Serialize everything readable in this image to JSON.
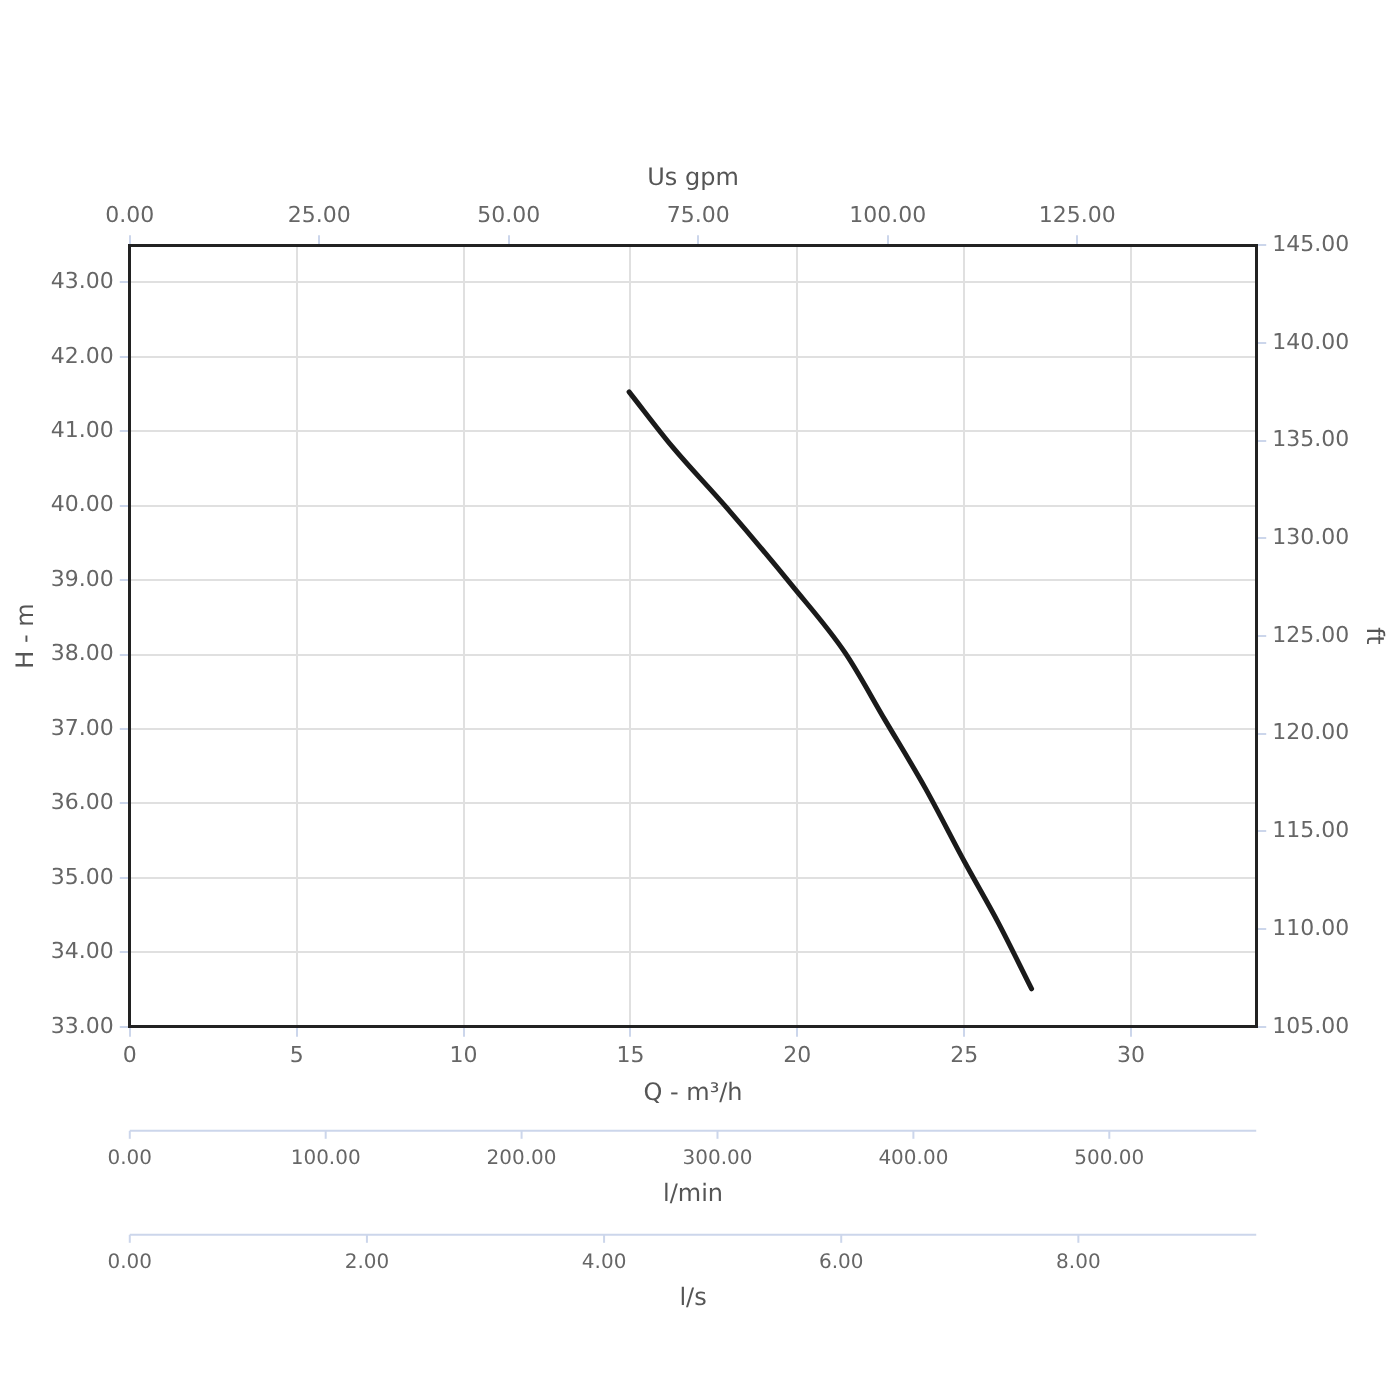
{
  "chart_data": {
    "type": "line",
    "xlabel": "Q - m³/h",
    "ylabel": "H - m",
    "x2label": "Us gpm",
    "y2label": "ft",
    "xlim": [
      0,
      33.75
    ],
    "xticks": [
      0,
      5,
      10,
      15,
      20,
      25,
      30
    ],
    "x2lim": [
      0,
      148.6
    ],
    "x2ticks": [
      {
        "value": 0,
        "label": "0.00"
      },
      {
        "value": 25,
        "label": "25.00"
      },
      {
        "value": 50,
        "label": "50.00"
      },
      {
        "value": 75,
        "label": "75.00"
      },
      {
        "value": 100,
        "label": "100.00"
      },
      {
        "value": 125,
        "label": "125.00"
      }
    ],
    "ylim": [
      33,
      43.5
    ],
    "yticks": [
      {
        "value": 33,
        "label": "33.00"
      },
      {
        "value": 34,
        "label": "34.00"
      },
      {
        "value": 35,
        "label": "35.00"
      },
      {
        "value": 36,
        "label": "36.00"
      },
      {
        "value": 37,
        "label": "37.00"
      },
      {
        "value": 38,
        "label": "38.00"
      },
      {
        "value": 39,
        "label": "39.00"
      },
      {
        "value": 40,
        "label": "40.00"
      },
      {
        "value": 41,
        "label": "41.00"
      },
      {
        "value": 42,
        "label": "42.00"
      },
      {
        "value": 43,
        "label": "43.00"
      }
    ],
    "y2lim": [
      105,
      145
    ],
    "y2ticks": [
      {
        "value": 105,
        "label": "105.00"
      },
      {
        "value": 110,
        "label": "110.00"
      },
      {
        "value": 115,
        "label": "115.00"
      },
      {
        "value": 120,
        "label": "120.00"
      },
      {
        "value": 125,
        "label": "125.00"
      },
      {
        "value": 130,
        "label": "130.00"
      },
      {
        "value": 135,
        "label": "135.00"
      },
      {
        "value": 140,
        "label": "140.00"
      },
      {
        "value": 145,
        "label": "145.00"
      }
    ],
    "grid": true,
    "legend": false,
    "marker": "none",
    "line_style": "solid",
    "annotations": [
      "0.00",
      "100.00",
      "200.00",
      "300.00",
      "400.00",
      "500.00",
      "l/min",
      "0.00",
      "2.00",
      "4.00",
      "6.00",
      "8.00",
      "l/s"
    ],
    "series": [
      {
        "color": "#1a1a1a",
        "x": [
          14.96,
          16.26,
          17.85,
          19.84,
          21.44,
          22.63,
          23.83,
          25.03,
          26.02,
          27.02
        ],
        "values": [
          41.53,
          40.79,
          39.99,
          38.93,
          38.02,
          37.12,
          36.21,
          35.2,
          34.4,
          33.51
        ]
      }
    ]
  }
}
